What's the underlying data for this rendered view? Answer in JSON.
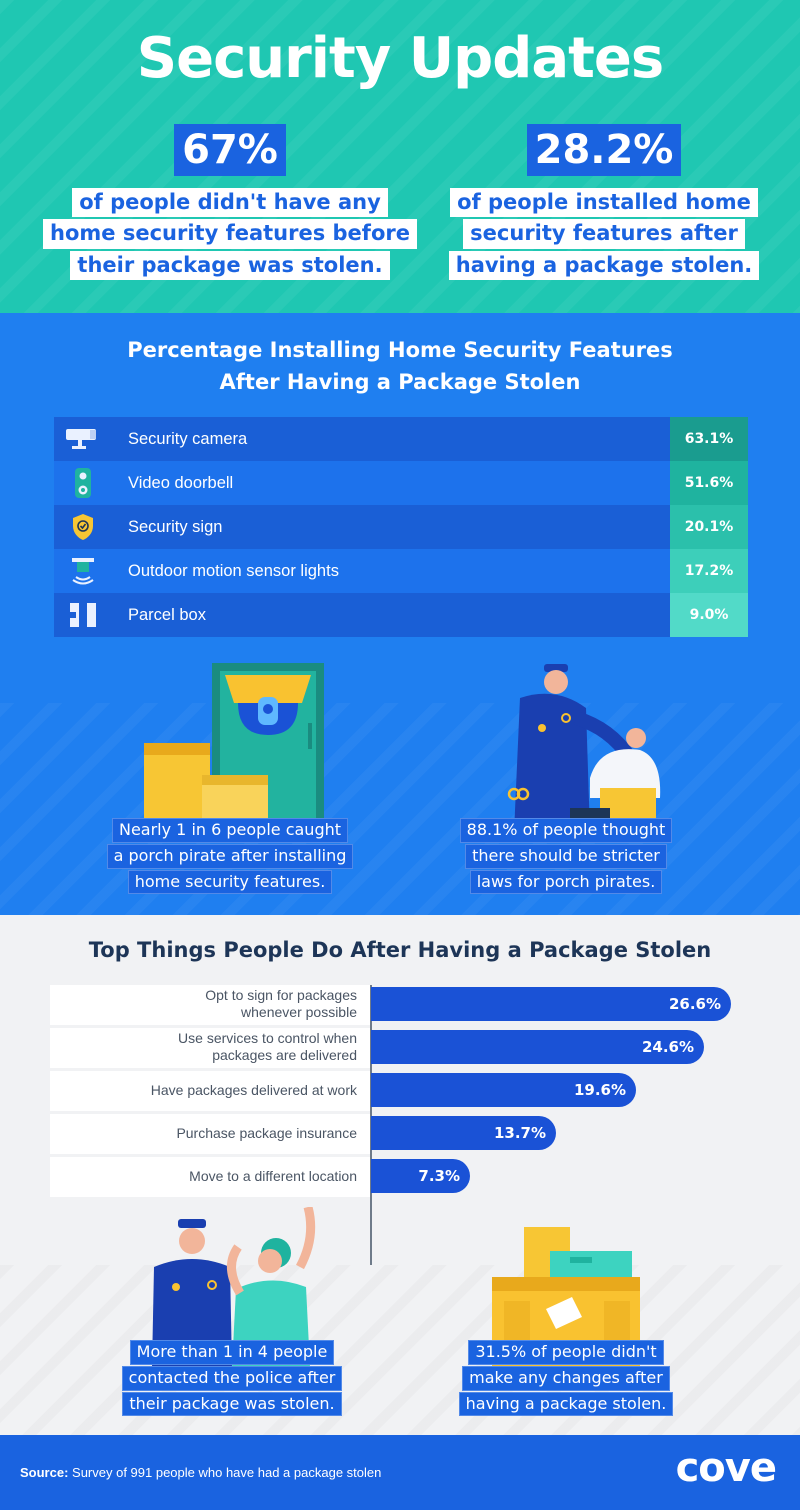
{
  "header": {
    "title": "Security Updates",
    "stats": [
      {
        "value": "67%",
        "lines": [
          "of people didn't have any",
          "home security features before",
          "their package was stolen."
        ]
      },
      {
        "value": "28.2%",
        "lines": [
          "of people installed home",
          "security features after",
          "having a package stolen."
        ]
      }
    ]
  },
  "features_section": {
    "title_lines": [
      "Percentage Installing Home Security Features",
      "After Having a Package Stolen"
    ],
    "colors": [
      "#1a9c8f",
      "#1fb39f",
      "#2bc0ab",
      "#3dcfba",
      "#52dac8"
    ]
  },
  "illustrations_top": {
    "left_lines": [
      "Nearly 1 in 6 people caught",
      "a porch pirate after installing",
      "home security features."
    ],
    "right_lines": [
      "88.1% of people thought",
      "there should be stricter",
      "laws for porch pirates."
    ]
  },
  "actions_section": {
    "title": "Top Things People Do After Having a Package Stolen"
  },
  "illustrations_bottom": {
    "left_lines": [
      "More than 1 in 4 people",
      "contacted the police after",
      "their package was stolen."
    ],
    "right_lines": [
      "31.5% of people didn't",
      "make any changes after",
      "having a package stolen."
    ]
  },
  "footer": {
    "source_label": "Source:",
    "source_text": " Survey of 991 people who have had a package stolen",
    "logo": "cove"
  },
  "chart_data": [
    {
      "type": "table",
      "title": "Percentage Installing Home Security Features After Having a Package Stolen",
      "rows": [
        {
          "label": "Security camera",
          "value": 63.1,
          "display": "63.1%",
          "icon": "security-camera-icon"
        },
        {
          "label": "Video doorbell",
          "value": 51.6,
          "display": "51.6%",
          "icon": "video-doorbell-icon"
        },
        {
          "label": "Security sign",
          "value": 20.1,
          "display": "20.1%",
          "icon": "security-sign-icon"
        },
        {
          "label": "Outdoor motion sensor lights",
          "value": 17.2,
          "display": "17.2%",
          "icon": "motion-light-icon"
        },
        {
          "label": "Parcel box",
          "value": 9.0,
          "display": "9.0%",
          "icon": "parcel-box-icon"
        }
      ]
    },
    {
      "type": "bar",
      "orientation": "horizontal",
      "title": "Top Things People Do After Having a Package Stolen",
      "categories": [
        [
          "Opt to sign for packages",
          "whenever possible"
        ],
        [
          "Use services to control when",
          "packages are delivered"
        ],
        [
          "Have packages delivered at work"
        ],
        [
          "Purchase package insurance"
        ],
        [
          "Move to a different location"
        ]
      ],
      "values": [
        26.6,
        24.6,
        19.6,
        13.7,
        7.3
      ],
      "display": [
        "26.6%",
        "24.6%",
        "19.6%",
        "13.7%",
        "7.3%"
      ],
      "bar_color": "#1a52d6",
      "xlim": [
        0,
        29.5
      ]
    }
  ]
}
